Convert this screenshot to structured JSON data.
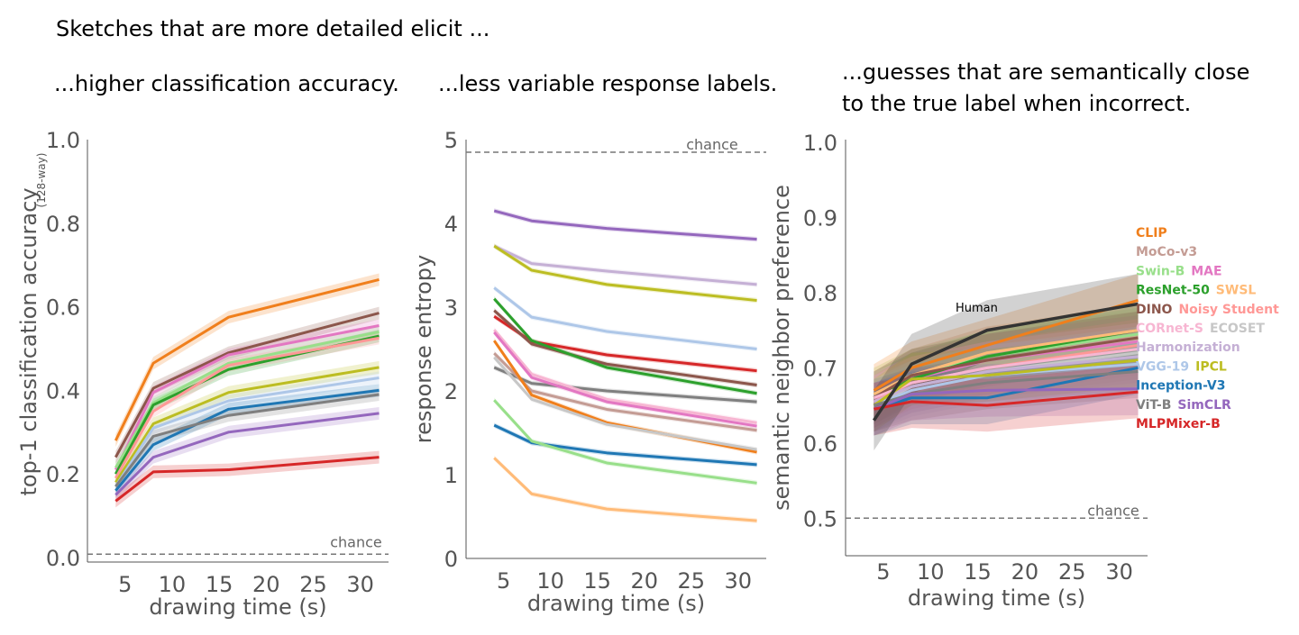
{
  "headline": "Sketches that are more detailed elicit ...",
  "panel_titles": [
    "...higher classification accuracy.",
    "...less variable response labels.",
    "...guesses that are semantically close to the true label when incorrect."
  ],
  "panel_title_3_lines": [
    "...guesses that are semantically close",
    "to the true label when incorrect."
  ],
  "chart_data": [
    {
      "type": "line",
      "ylabel": "top-1 classification accuracy",
      "ylabel_note": "(128-way)",
      "xlabel": "drawing time (s)",
      "ylim": [
        0.0,
        1.0
      ],
      "yticks": [
        "0.0",
        "0.2",
        "0.4",
        "0.6",
        "0.8",
        "1.0"
      ],
      "xticks": [
        "5",
        "10",
        "15",
        "20",
        "25",
        "30"
      ],
      "x": [
        4,
        8,
        16,
        32
      ],
      "chance": {
        "label": "chance",
        "value": 0.008
      },
      "grid": false,
      "series": [
        {
          "color": "#f07f1c",
          "values": [
            0.28,
            0.465,
            0.575,
            0.665
          ],
          "band": 0.015
        },
        {
          "color": "#8c564b",
          "values": [
            0.24,
            0.405,
            0.49,
            0.585
          ],
          "band": 0.015
        },
        {
          "color": "#e377c2",
          "values": [
            0.21,
            0.395,
            0.485,
            0.555
          ],
          "band": 0.015
        },
        {
          "color": "#98df8a",
          "values": [
            0.215,
            0.37,
            0.465,
            0.54
          ],
          "band": 0.015
        },
        {
          "color": "#2ca02c",
          "values": [
            0.2,
            0.365,
            0.45,
            0.53
          ],
          "band": 0.015
        },
        {
          "color": "#ff9896",
          "values": [
            0.19,
            0.35,
            0.46,
            0.525
          ],
          "band": 0.015
        },
        {
          "color": "#bcbd22",
          "values": [
            0.18,
            0.32,
            0.395,
            0.455
          ],
          "band": 0.015
        },
        {
          "color": "#aec7e8",
          "values": [
            0.17,
            0.31,
            0.375,
            0.43
          ],
          "band": 0.015
        },
        {
          "color": "#1f77b4",
          "values": [
            0.16,
            0.27,
            0.355,
            0.4
          ],
          "band": 0.015
        },
        {
          "color": "#7f7f7f",
          "values": [
            0.17,
            0.29,
            0.34,
            0.39
          ],
          "band": 0.015
        },
        {
          "color": "#9467bd",
          "values": [
            0.15,
            0.24,
            0.3,
            0.345
          ],
          "band": 0.015
        },
        {
          "color": "#d62728",
          "values": [
            0.135,
            0.205,
            0.21,
            0.24
          ],
          "band": 0.015
        }
      ]
    },
    {
      "type": "line",
      "ylabel": "response entropy",
      "xlabel": "drawing time (s)",
      "ylim": [
        0,
        5
      ],
      "yticks": [
        "0",
        "1",
        "2",
        "3",
        "4",
        "5"
      ],
      "xticks": [
        "5",
        "10",
        "15",
        "20",
        "25",
        "30"
      ],
      "x": [
        4,
        8,
        16,
        32
      ],
      "chance": {
        "label": "chance",
        "value": 4.85
      },
      "grid": false,
      "series": [
        {
          "color": "#9467bd",
          "values": [
            4.15,
            4.03,
            3.94,
            3.81
          ],
          "band": 0.03
        },
        {
          "color": "#c5b0d5",
          "values": [
            3.73,
            3.52,
            3.43,
            3.27
          ],
          "band": 0.03
        },
        {
          "color": "#bcbd22",
          "values": [
            3.73,
            3.44,
            3.27,
            3.08
          ],
          "band": 0.03
        },
        {
          "color": "#aec7e8",
          "values": [
            3.23,
            2.88,
            2.71,
            2.5
          ],
          "band": 0.03
        },
        {
          "color": "#d62728",
          "values": [
            2.89,
            2.59,
            2.43,
            2.24
          ],
          "band": 0.03
        },
        {
          "color": "#8c564b",
          "values": [
            2.96,
            2.56,
            2.32,
            2.07
          ],
          "band": 0.03
        },
        {
          "color": "#2ca02c",
          "values": [
            3.1,
            2.6,
            2.28,
            1.97
          ],
          "band": 0.03
        },
        {
          "color": "#7f7f7f",
          "values": [
            2.28,
            2.09,
            2.0,
            1.87
          ],
          "band": 0.03
        },
        {
          "color": "#f7b6d2",
          "values": [
            2.73,
            2.2,
            1.9,
            1.62
          ],
          "band": 0.03
        },
        {
          "color": "#e377c2",
          "values": [
            2.7,
            2.16,
            1.87,
            1.58
          ],
          "band": 0.03
        },
        {
          "color": "#c49c94",
          "values": [
            2.45,
            2.0,
            1.78,
            1.53
          ],
          "band": 0.03
        },
        {
          "color": "#f07f1c",
          "values": [
            2.6,
            1.95,
            1.62,
            1.27
          ],
          "band": 0.03
        },
        {
          "color": "#c7c7c7",
          "values": [
            2.4,
            1.9,
            1.6,
            1.3
          ],
          "band": 0.03
        },
        {
          "color": "#1f77b4",
          "values": [
            1.59,
            1.38,
            1.26,
            1.12
          ],
          "band": 0.03
        },
        {
          "color": "#98df8a",
          "values": [
            1.89,
            1.4,
            1.14,
            0.9
          ],
          "band": 0.03
        },
        {
          "color": "#ffbb78",
          "values": [
            1.2,
            0.77,
            0.59,
            0.45
          ],
          "band": 0.03
        }
      ]
    },
    {
      "type": "line",
      "ylabel": "semantic neighbor preference",
      "xlabel": "drawing time (s)",
      "ylim": [
        0.45,
        1.0
      ],
      "yticks": [
        "0.5",
        "0.6",
        "0.7",
        "0.8",
        "0.9",
        "1.0"
      ],
      "xticks": [
        "5",
        "10",
        "15",
        "20",
        "25",
        "30"
      ],
      "x": [
        4,
        8,
        16,
        32
      ],
      "chance": {
        "label": "chance",
        "value": 0.5
      },
      "grid": false,
      "human_label": "Human",
      "legend": [
        [
          {
            "text": "CLIP",
            "color": "#f07f1c"
          }
        ],
        [
          {
            "text": "MoCo-v3",
            "color": "#c49c94"
          }
        ],
        [
          {
            "text": "Swin-B",
            "color": "#98df8a"
          },
          {
            "text": "MAE",
            "color": "#e377c2"
          }
        ],
        [
          {
            "text": "ResNet-50",
            "color": "#2ca02c"
          },
          {
            "text": "SWSL",
            "color": "#ffbb78"
          }
        ],
        [
          {
            "text": "DINO",
            "color": "#8c564b"
          },
          {
            "text": "Noisy Student",
            "color": "#ff9896"
          }
        ],
        [
          {
            "text": "CORnet-S",
            "color": "#f7b6d2"
          },
          {
            "text": "ECOSET",
            "color": "#c7c7c7"
          }
        ],
        [
          {
            "text": "Harmonization",
            "color": "#c5b0d5"
          }
        ],
        [
          {
            "text": "VGG-19",
            "color": "#aec7e8"
          },
          {
            "text": "IPCL",
            "color": "#bcbd22"
          }
        ],
        [
          {
            "text": "Inception-V3",
            "color": "#1f77b4"
          }
        ],
        [
          {
            "text": "ViT-B",
            "color": "#7f7f7f"
          },
          {
            "text": "SimCLR",
            "color": "#9467bd"
          }
        ],
        [
          {
            "text": "MLPMixer-B",
            "color": "#d62728"
          }
        ]
      ],
      "series": [
        {
          "color": "#f07f1c",
          "values": [
            0.67,
            0.7,
            0.73,
            0.79
          ],
          "band": 0.035
        },
        {
          "color": "#c49c94",
          "values": [
            0.66,
            0.69,
            0.72,
            0.74
          ],
          "band": 0.035
        },
        {
          "color": "#98df8a",
          "values": [
            0.665,
            0.69,
            0.715,
            0.745
          ],
          "band": 0.035
        },
        {
          "color": "#e377c2",
          "values": [
            0.655,
            0.685,
            0.71,
            0.735
          ],
          "band": 0.035
        },
        {
          "color": "#2ca02c",
          "values": [
            0.66,
            0.685,
            0.715,
            0.75
          ],
          "band": 0.035
        },
        {
          "color": "#ffbb78",
          "values": [
            0.665,
            0.69,
            0.72,
            0.75
          ],
          "band": 0.035
        },
        {
          "color": "#8c564b",
          "values": [
            0.66,
            0.69,
            0.71,
            0.74
          ],
          "band": 0.035
        },
        {
          "color": "#ff9896",
          "values": [
            0.655,
            0.68,
            0.7,
            0.73
          ],
          "band": 0.035
        },
        {
          "color": "#f7b6d2",
          "values": [
            0.66,
            0.68,
            0.7,
            0.725
          ],
          "band": 0.035
        },
        {
          "color": "#c7c7c7",
          "values": [
            0.65,
            0.675,
            0.695,
            0.72
          ],
          "band": 0.035
        },
        {
          "color": "#c5b0d5",
          "values": [
            0.655,
            0.675,
            0.695,
            0.715
          ],
          "band": 0.035
        },
        {
          "color": "#aec7e8",
          "values": [
            0.65,
            0.67,
            0.69,
            0.705
          ],
          "band": 0.035
        },
        {
          "color": "#bcbd22",
          "values": [
            0.65,
            0.685,
            0.69,
            0.71
          ],
          "band": 0.035
        },
        {
          "color": "#1f77b4",
          "values": [
            0.645,
            0.66,
            0.66,
            0.7
          ],
          "band": 0.035
        },
        {
          "color": "#7f7f7f",
          "values": [
            0.65,
            0.665,
            0.68,
            0.695
          ],
          "band": 0.035
        },
        {
          "color": "#9467bd",
          "values": [
            0.645,
            0.665,
            0.67,
            0.672
          ],
          "band": 0.035
        },
        {
          "color": "#d62728",
          "values": [
            0.645,
            0.655,
            0.65,
            0.668
          ],
          "band": 0.035
        },
        {
          "name": "Human",
          "color": "#333333",
          "values": [
            0.63,
            0.705,
            0.75,
            0.785
          ],
          "band": 0.04
        }
      ]
    }
  ]
}
